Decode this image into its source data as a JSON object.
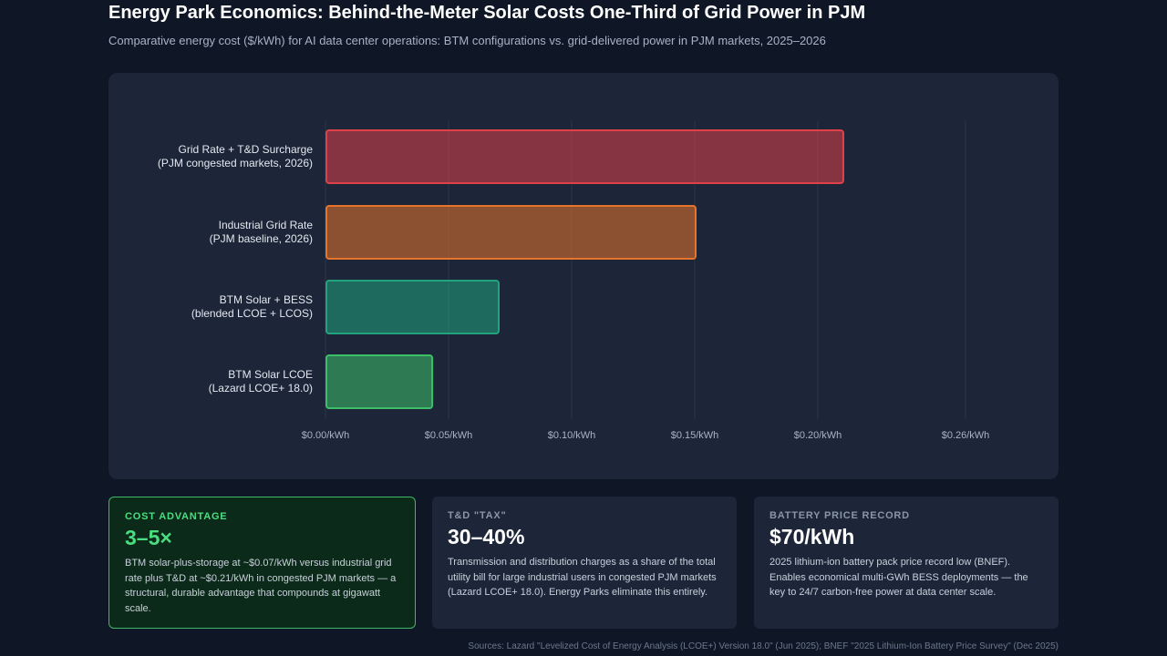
{
  "header": {
    "title": "Energy Park Economics: Behind-the-Meter Solar Costs One-Third of Grid Power in PJM",
    "subtitle": "Comparative energy cost ($/kWh) for AI data center operations: BTM configurations vs. grid-delivered power in PJM markets, 2025–2026"
  },
  "chart_data": {
    "type": "bar",
    "orientation": "horizontal",
    "categories": [
      "Grid Rate + T&D Surcharge\n(PJM congested markets, 2026)",
      "Industrial Grid Rate\n(PJM baseline, 2026)",
      "BTM Solar + BESS\n(blended LCOE + LCOS)",
      "BTM Solar LCOE\n(Lazard LCOE+ 18.0)"
    ],
    "values": [
      0.21,
      0.15,
      0.07,
      0.043
    ],
    "colors": [
      "#e0404a",
      "#e8742c",
      "#22a37e",
      "#3dbf6a"
    ],
    "xlim": [
      0,
      0.26
    ],
    "xticks": [
      {
        "value": 0,
        "label": "$0.00/kWh"
      },
      {
        "value": 0.05,
        "label": "$0.05/kWh"
      },
      {
        "value": 0.1,
        "label": "$0.10/kWh"
      },
      {
        "value": 0.15,
        "label": "$0.15/kWh"
      },
      {
        "value": 0.2,
        "label": "$0.20/kWh"
      },
      {
        "value": 0.26,
        "label": "$0.26/kWh"
      }
    ],
    "grid": true
  },
  "cards": [
    {
      "label": "COST ADVANTAGE",
      "value": "3–5×",
      "text": "BTM solar-plus-storage at ~$0.07/kWh versus industrial grid rate plus T&D at ~$0.21/kWh in congested PJM markets — a structural, durable advantage that compounds at gigawatt scale."
    },
    {
      "label": "T&D \"TAX\"",
      "value": "30–40%",
      "text": "Transmission and distribution charges as a share of the total utility bill for large industrial users in congested PJM markets (Lazard LCOE+ 18.0). Energy Parks eliminate this entirely."
    },
    {
      "label": "BATTERY PRICE RECORD",
      "value": "$70/kWh",
      "text": "2025 lithium-ion battery pack price record low (BNEF). Enables economical multi-GWh BESS deployments — the key to 24/7 carbon-free power at data center scale."
    }
  ],
  "sources": "Sources: Lazard \"Levelized Cost of Energy Analysis (LCOE+) Version 18.0\" (Jun 2025); BNEF \"2025 Lithium-Ion Battery Price Survey\" (Dec 2025)"
}
